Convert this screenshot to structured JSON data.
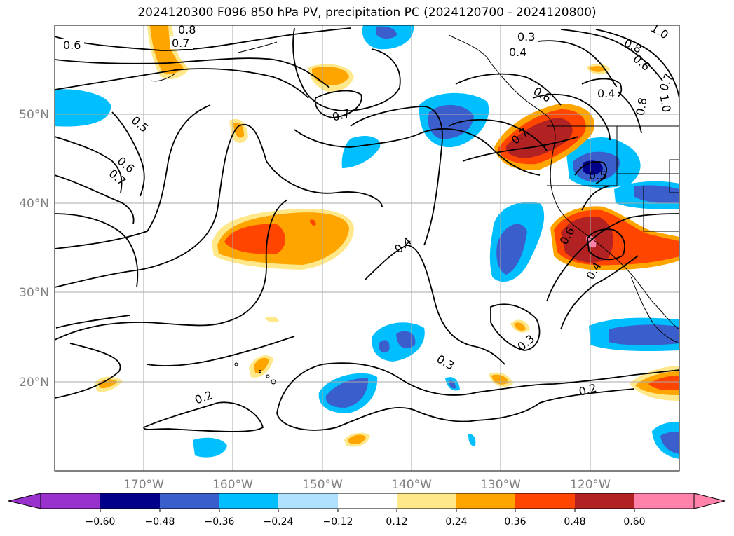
{
  "title": "2024120300 F096 850 hPa PV, precipitation PC (2024120700 - 2024120800)",
  "lat_labels": [
    "50°N",
    "40°N",
    "30°N",
    "20°N"
  ],
  "lon_labels": [
    "170°W",
    "160°W",
    "150°W",
    "140°W",
    "130°W",
    "120°W"
  ],
  "contour_labels": [
    "0.8",
    "0.7",
    "0.6",
    "0.3",
    "0.4",
    "1.0",
    "0.8",
    "0.6",
    "0.7",
    "0.4",
    "0.8",
    "1.0",
    "0.5",
    "0.6",
    "0.7",
    "0.7",
    "0.6",
    "0.7",
    "0.5",
    "0.4",
    "0.6",
    "0.4",
    "0.3",
    "0.3",
    "0.2",
    "0.2"
  ],
  "colorbar": {
    "ticks": [
      "−0.60",
      "−0.48",
      "−0.36",
      "−0.24",
      "−0.12",
      "0.12",
      "0.24",
      "0.36",
      "0.48",
      "0.60"
    ],
    "colors": [
      "#9932cc",
      "#00008b",
      "#3a5fcd",
      "#00bfff",
      "#b0e2ff",
      "#ffffff",
      "#ffe88a",
      "#ffa500",
      "#ff4500",
      "#b22222",
      "#ff82ab"
    ]
  },
  "colors": {
    "purple": "#9932cc",
    "navy": "#00008b",
    "blue": "#3a5fcd",
    "sky": "#00bfff",
    "lightblue": "#b0e2ff",
    "yellow": "#ffe88a",
    "orange": "#ffa500",
    "redorange": "#ff4500",
    "firebrick": "#b22222",
    "pink": "#ff82ab"
  }
}
